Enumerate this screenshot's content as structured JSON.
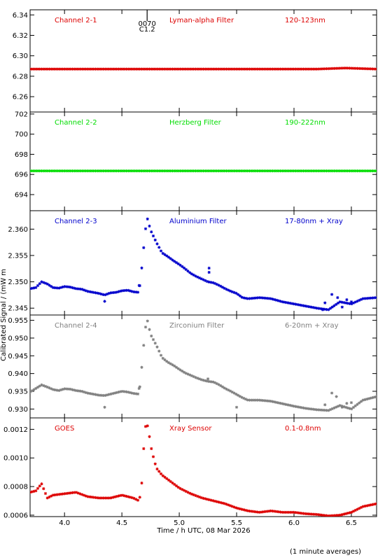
{
  "ylabel": "Calibrated Signal / (mW m",
  "xlabel": "Time / h UTC, 08 Mar 2026",
  "footnote": "(1 minute averages)",
  "flare_marker": [
    "0070",
    "C1.2"
  ],
  "flare_time": 4.72,
  "chart_data": [
    {
      "type": "scatter",
      "channel": "Channel 2-1",
      "filter": "Lyman-alpha Filter",
      "band": "120-123nm",
      "color": "#dd0000",
      "xlim": [
        3.7,
        6.72
      ],
      "ylim": [
        6.245,
        6.345
      ],
      "yticks": [
        6.26,
        6.28,
        6.3,
        6.32,
        6.34
      ],
      "ytick_labels": [
        "6.26",
        "6.28",
        "6.30",
        "6.32",
        "6.34"
      ],
      "points": [
        [
          3.7,
          6.287
        ],
        [
          4.2,
          6.287
        ],
        [
          4.7,
          6.287
        ],
        [
          5.2,
          6.287
        ],
        [
          5.7,
          6.287
        ],
        [
          6.2,
          6.287
        ],
        [
          6.45,
          6.288
        ],
        [
          6.72,
          6.287
        ]
      ]
    },
    {
      "type": "scatter",
      "channel": "Channel 2-2",
      "filter": "Herzberg Filter",
      "band": "190-222nm",
      "color": "#00dd00",
      "xlim": [
        3.7,
        6.72
      ],
      "ylim": [
        692.4,
        702.2
      ],
      "yticks": [
        694,
        696,
        698,
        700,
        702
      ],
      "ytick_labels": [
        "694",
        "696",
        "698",
        "700",
        "702"
      ],
      "points": [
        [
          3.7,
          696.35
        ],
        [
          4.2,
          696.35
        ],
        [
          4.7,
          696.35
        ],
        [
          5.2,
          696.35
        ],
        [
          5.7,
          696.35
        ],
        [
          6.2,
          696.35
        ],
        [
          6.72,
          696.35
        ]
      ]
    },
    {
      "type": "scatter",
      "channel": "Channel 2-3",
      "filter": "Aluminium Filter",
      "band": "17-80nm + Xray",
      "color": "#0000cc",
      "xlim": [
        3.7,
        6.72
      ],
      "ylim": [
        2.3437,
        2.3635
      ],
      "yticks": [
        2.345,
        2.35,
        2.355,
        2.36
      ],
      "ytick_labels": [
        "2.345",
        "2.350",
        "2.355",
        "2.360"
      ],
      "points": [
        [
          3.7,
          2.3487
        ],
        [
          3.75,
          2.3489
        ],
        [
          3.8,
          2.35
        ],
        [
          3.85,
          2.3496
        ],
        [
          3.9,
          2.3489
        ],
        [
          3.95,
          2.3488
        ],
        [
          4.0,
          2.3491
        ],
        [
          4.05,
          2.349
        ],
        [
          4.1,
          2.3487
        ],
        [
          4.15,
          2.3486
        ],
        [
          4.2,
          2.3482
        ],
        [
          4.25,
          2.348
        ],
        [
          4.3,
          2.3478
        ],
        [
          4.35,
          2.3475
        ],
        [
          4.4,
          2.3479
        ],
        [
          4.45,
          2.348
        ],
        [
          4.5,
          2.3483
        ],
        [
          4.55,
          2.3484
        ],
        [
          4.6,
          2.3481
        ],
        [
          4.65,
          2.348
        ],
        [
          4.68,
          2.354
        ],
        [
          4.7,
          2.359
        ],
        [
          4.72,
          2.3622
        ],
        [
          4.75,
          2.3598
        ],
        [
          4.8,
          2.3575
        ],
        [
          4.85,
          2.3555
        ],
        [
          4.9,
          2.3548
        ],
        [
          4.95,
          2.354
        ],
        [
          5.0,
          2.3533
        ],
        [
          5.05,
          2.3525
        ],
        [
          5.1,
          2.3516
        ],
        [
          5.15,
          2.351
        ],
        [
          5.2,
          2.3505
        ],
        [
          5.25,
          2.35
        ],
        [
          5.3,
          2.3498
        ],
        [
          5.35,
          2.3493
        ],
        [
          5.4,
          2.3487
        ],
        [
          5.45,
          2.3482
        ],
        [
          5.5,
          2.3478
        ],
        [
          5.55,
          2.347
        ],
        [
          5.6,
          2.3468
        ],
        [
          5.7,
          2.347
        ],
        [
          5.8,
          2.3468
        ],
        [
          5.9,
          2.3462
        ],
        [
          6.0,
          2.3458
        ],
        [
          6.1,
          2.3454
        ],
        [
          6.2,
          2.345
        ],
        [
          6.3,
          2.3447
        ],
        [
          6.4,
          2.3462
        ],
        [
          6.5,
          2.3458
        ],
        [
          6.6,
          2.3468
        ],
        [
          6.72,
          2.347
        ]
      ],
      "outliers": [
        [
          4.35,
          2.3463
        ],
        [
          4.65,
          2.3493
        ],
        [
          5.26,
          2.3526
        ],
        [
          5.26,
          2.3518
        ],
        [
          6.25,
          2.3447
        ],
        [
          6.27,
          2.346
        ],
        [
          6.33,
          2.3476
        ],
        [
          6.38,
          2.347
        ],
        [
          6.42,
          2.3452
        ],
        [
          6.46,
          2.3466
        ],
        [
          6.5,
          2.3462
        ]
      ]
    },
    {
      "type": "scatter",
      "channel": "Channel 2-4",
      "filter": "Zirconium Filter",
      "band": "6-20nm + Xray",
      "color": "#808080",
      "xlim": [
        3.7,
        6.72
      ],
      "ylim": [
        0.9275,
        0.9565
      ],
      "yticks": [
        0.93,
        0.935,
        0.94,
        0.945,
        0.95,
        0.955
      ],
      "ytick_labels": [
        "0.930",
        "0.935",
        "0.940",
        "0.945",
        "0.950",
        "0.955"
      ],
      "points": [
        [
          3.7,
          0.9348
        ],
        [
          3.75,
          0.9358
        ],
        [
          3.8,
          0.9368
        ],
        [
          3.85,
          0.9362
        ],
        [
          3.9,
          0.9355
        ],
        [
          3.95,
          0.9352
        ],
        [
          4.0,
          0.9357
        ],
        [
          4.05,
          0.9356
        ],
        [
          4.1,
          0.9352
        ],
        [
          4.15,
          0.935
        ],
        [
          4.2,
          0.9345
        ],
        [
          4.25,
          0.9342
        ],
        [
          4.3,
          0.9339
        ],
        [
          4.35,
          0.9338
        ],
        [
          4.4,
          0.9342
        ],
        [
          4.45,
          0.9346
        ],
        [
          4.5,
          0.935
        ],
        [
          4.55,
          0.9348
        ],
        [
          4.6,
          0.9344
        ],
        [
          4.65,
          0.9342
        ],
        [
          4.68,
          0.944
        ],
        [
          4.7,
          0.952
        ],
        [
          4.72,
          0.9553
        ],
        [
          4.75,
          0.951
        ],
        [
          4.8,
          0.948
        ],
        [
          4.85,
          0.9445
        ],
        [
          4.9,
          0.9432
        ],
        [
          4.95,
          0.9423
        ],
        [
          5.0,
          0.9412
        ],
        [
          5.05,
          0.9402
        ],
        [
          5.1,
          0.9395
        ],
        [
          5.15,
          0.9388
        ],
        [
          5.2,
          0.9382
        ],
        [
          5.25,
          0.9378
        ],
        [
          5.3,
          0.9376
        ],
        [
          5.35,
          0.9368
        ],
        [
          5.4,
          0.9358
        ],
        [
          5.45,
          0.935
        ],
        [
          5.5,
          0.9341
        ],
        [
          5.55,
          0.9332
        ],
        [
          5.6,
          0.9325
        ],
        [
          5.7,
          0.9325
        ],
        [
          5.8,
          0.9322
        ],
        [
          5.9,
          0.9315
        ],
        [
          6.0,
          0.9308
        ],
        [
          6.1,
          0.9302
        ],
        [
          6.2,
          0.9298
        ],
        [
          6.3,
          0.9296
        ],
        [
          6.4,
          0.931
        ],
        [
          6.5,
          0.93
        ],
        [
          6.6,
          0.9325
        ],
        [
          6.72,
          0.9335
        ]
      ],
      "outliers": [
        [
          4.35,
          0.9305
        ],
        [
          4.65,
          0.9358
        ],
        [
          5.25,
          0.9385
        ],
        [
          5.5,
          0.9305
        ],
        [
          6.27,
          0.9312
        ],
        [
          6.33,
          0.9345
        ],
        [
          6.37,
          0.9335
        ],
        [
          6.42,
          0.9305
        ],
        [
          6.46,
          0.9316
        ],
        [
          6.5,
          0.9318
        ]
      ]
    },
    {
      "type": "scatter",
      "channel": "GOES",
      "filter": "Xray Sensor",
      "band": "0.1-0.8nm",
      "color": "#dd0000",
      "xlim": [
        3.7,
        6.72
      ],
      "ylim": [
        0.00059,
        0.00128
      ],
      "yticks": [
        0.0006,
        0.0008,
        0.001,
        0.0012
      ],
      "ytick_labels": [
        "0.0006",
        "0.0008",
        "0.0010",
        "0.0012"
      ],
      "points": [
        [
          3.7,
          0.00076
        ],
        [
          3.75,
          0.00077
        ],
        [
          3.8,
          0.00082
        ],
        [
          3.85,
          0.00072
        ],
        [
          3.9,
          0.00074
        ],
        [
          4.0,
          0.00075
        ],
        [
          4.1,
          0.00076
        ],
        [
          4.2,
          0.00073
        ],
        [
          4.3,
          0.00072
        ],
        [
          4.4,
          0.00072
        ],
        [
          4.5,
          0.00074
        ],
        [
          4.6,
          0.00072
        ],
        [
          4.65,
          0.0007
        ],
        [
          4.67,
          0.00078
        ],
        [
          4.7,
          0.00121
        ],
        [
          4.72,
          0.00124
        ],
        [
          4.74,
          0.00115
        ],
        [
          4.76,
          0.00105
        ],
        [
          4.8,
          0.00093
        ],
        [
          4.85,
          0.00088
        ],
        [
          4.9,
          0.00085
        ],
        [
          5.0,
          0.00079
        ],
        [
          5.1,
          0.00075
        ],
        [
          5.2,
          0.00072
        ],
        [
          5.3,
          0.0007
        ],
        [
          5.4,
          0.00068
        ],
        [
          5.5,
          0.00065
        ],
        [
          5.6,
          0.00063
        ],
        [
          5.7,
          0.00062
        ],
        [
          5.8,
          0.00063
        ],
        [
          5.9,
          0.00062
        ],
        [
          6.0,
          0.00062
        ],
        [
          6.1,
          0.00061
        ],
        [
          6.2,
          0.000605
        ],
        [
          6.3,
          0.000595
        ],
        [
          6.4,
          0.0006
        ],
        [
          6.5,
          0.00062
        ],
        [
          6.6,
          0.00066
        ],
        [
          6.72,
          0.00068
        ]
      ],
      "outliers": []
    }
  ],
  "xticks": [
    4.0,
    4.5,
    5.0,
    5.5,
    6.0,
    6.5
  ],
  "xtick_labels": [
    "4.0",
    "4.5",
    "5.0",
    "5.5",
    "6.0",
    "6.5"
  ]
}
